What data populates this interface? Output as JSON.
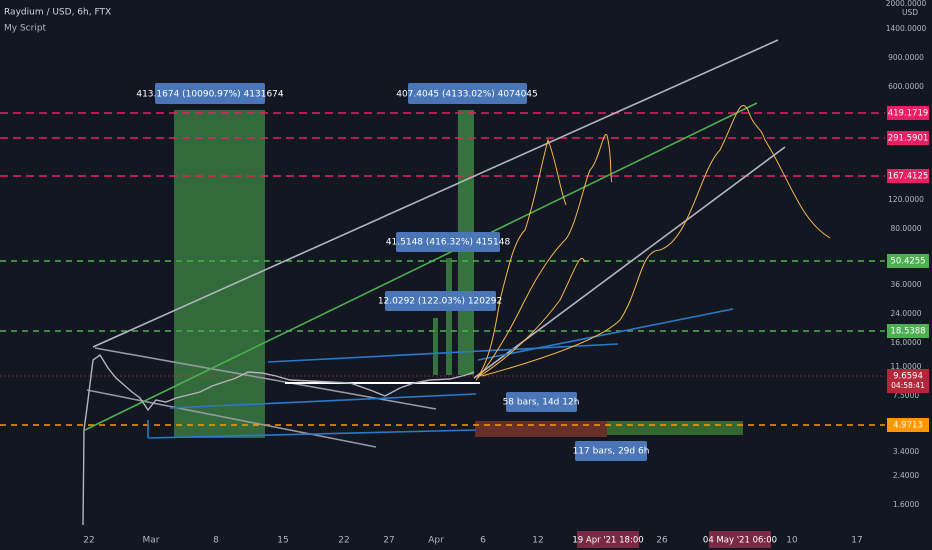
{
  "header": {
    "symbol": "Raydium / USD, 6h, FTX",
    "indicator": "My Script"
  },
  "annotations": [
    "413.1674 (10090.97%) 4131674",
    "407.4045 (4133.02%) 4074045",
    "41.5148 (416.32%) 415148",
    "12.0292 (122.03%) 120292",
    "58 bars, 14d 12h",
    "117 bars, 29d 6h"
  ],
  "price_axis": {
    "labels": [
      "2000.0000",
      "1400.0000",
      "900.0000",
      "600.0000",
      "120.0000",
      "80.0000",
      "36.0000",
      "24.0000",
      "16.0000",
      "11.0000",
      "7.5000",
      "3.4000",
      "2.4000",
      "1.6000"
    ],
    "currency": "USD",
    "markers": [
      "419.1719",
      "291.5901",
      "167.4125",
      "50.4255",
      "18.5388",
      "9.6594",
      "4.9713"
    ],
    "countdown": "04:58:41"
  },
  "time_axis": {
    "labels": [
      "22",
      "Mar",
      "8",
      "15",
      "22",
      "27",
      "Apr",
      "6",
      "12",
      "26",
      "10",
      "17"
    ],
    "markers": [
      "19 Apr '21  18:00",
      "04 May '21  06:00"
    ]
  }
}
